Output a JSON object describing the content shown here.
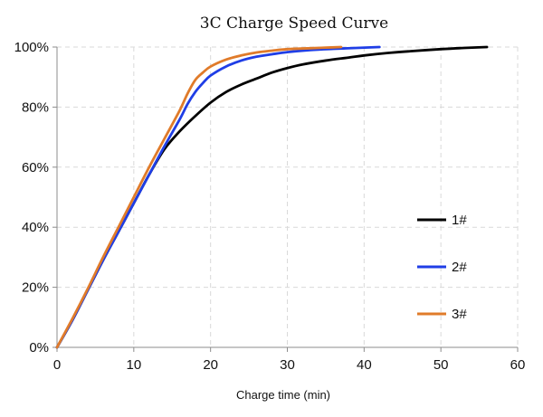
{
  "chart_data": {
    "type": "line",
    "title": "3C Charge Speed Curve",
    "xlabel": "Charge time (min)",
    "ylabel": "",
    "xlim": [
      0,
      60
    ],
    "ylim": [
      0,
      100
    ],
    "x_ticks": [
      0,
      10,
      20,
      30,
      40,
      50,
      60
    ],
    "x_tick_labels": [
      "0",
      "10",
      "20",
      "30",
      "40",
      "50",
      "60"
    ],
    "y_ticks": [
      0,
      20,
      40,
      60,
      80,
      100
    ],
    "y_tick_labels": [
      "0%",
      "20%",
      "40%",
      "60%",
      "80%",
      "100%"
    ],
    "grid": true,
    "legend_position": "right",
    "series": [
      {
        "name": "1#",
        "color": "#000000",
        "points": [
          [
            0,
            0
          ],
          [
            2,
            9
          ],
          [
            4,
            19
          ],
          [
            6,
            29
          ],
          [
            8,
            38.5
          ],
          [
            10,
            48
          ],
          [
            12,
            57.5
          ],
          [
            14,
            66
          ],
          [
            16,
            72
          ],
          [
            18,
            77
          ],
          [
            20,
            81.5
          ],
          [
            22,
            85
          ],
          [
            24,
            87.5
          ],
          [
            26,
            89.5
          ],
          [
            28,
            91.5
          ],
          [
            30,
            93
          ],
          [
            32,
            94.2
          ],
          [
            35,
            95.5
          ],
          [
            38,
            96.5
          ],
          [
            40,
            97.2
          ],
          [
            43,
            98
          ],
          [
            46,
            98.6
          ],
          [
            50,
            99.3
          ],
          [
            53,
            99.7
          ],
          [
            56,
            100
          ]
        ]
      },
      {
        "name": "2#",
        "color": "#1f3ee6",
        "points": [
          [
            0,
            0
          ],
          [
            2,
            9
          ],
          [
            4,
            19
          ],
          [
            6,
            29
          ],
          [
            8,
            38.5
          ],
          [
            10,
            48
          ],
          [
            12,
            57.5
          ],
          [
            14,
            67
          ],
          [
            16,
            76
          ],
          [
            17,
            81
          ],
          [
            18,
            85
          ],
          [
            19,
            88
          ],
          [
            20,
            90.5
          ],
          [
            22,
            93.5
          ],
          [
            24,
            95.5
          ],
          [
            26,
            96.8
          ],
          [
            28,
            97.6
          ],
          [
            30,
            98.3
          ],
          [
            33,
            99
          ],
          [
            36,
            99.4
          ],
          [
            39,
            99.7
          ],
          [
            42,
            100
          ]
        ]
      },
      {
        "name": "3#",
        "color": "#e07b2a",
        "points": [
          [
            0,
            0
          ],
          [
            2,
            9.5
          ],
          [
            4,
            19.5
          ],
          [
            6,
            30
          ],
          [
            8,
            40
          ],
          [
            10,
            50
          ],
          [
            12,
            60
          ],
          [
            14,
            69.5
          ],
          [
            16,
            79
          ],
          [
            17,
            84.5
          ],
          [
            18,
            89
          ],
          [
            19,
            91.5
          ],
          [
            20,
            93.5
          ],
          [
            22,
            95.8
          ],
          [
            24,
            97.2
          ],
          [
            26,
            98.2
          ],
          [
            28,
            98.8
          ],
          [
            30,
            99.3
          ],
          [
            33,
            99.6
          ],
          [
            35,
            99.8
          ],
          [
            37,
            100
          ]
        ]
      }
    ]
  }
}
